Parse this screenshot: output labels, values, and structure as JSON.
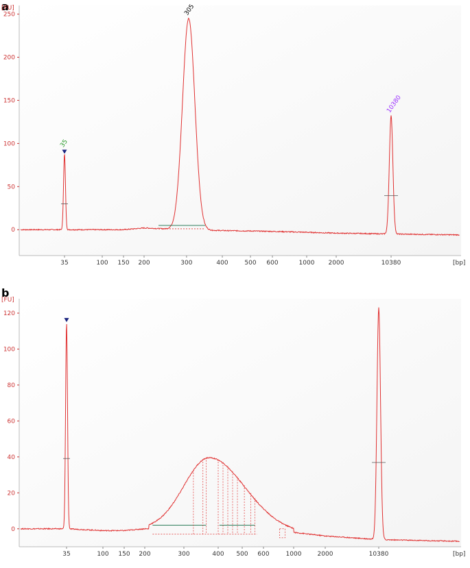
{
  "chart_data": [
    {
      "panel_label": "a",
      "type": "line",
      "y_unit": "[FU]",
      "x_unit": "[bp]",
      "ylim": [
        -30,
        260
      ],
      "yticks": [
        0,
        50,
        100,
        150,
        200,
        250
      ],
      "x_tick_labels": [
        "35",
        "100",
        "150",
        "200",
        "300",
        "400",
        "500",
        "600",
        "1000",
        "2000",
        "10380"
      ],
      "x_scale": "migration-time (non-linear)",
      "grid": false,
      "line_color": "#e03030",
      "series": [
        {
          "baseline_points": [
            [
              15,
              0
            ],
            [
              35,
              0
            ],
            [
              100,
              0
            ],
            [
              150,
              0
            ],
            [
              200,
              2
            ],
            [
              300,
              0
            ],
            [
              400,
              -1
            ],
            [
              600,
              -2
            ],
            [
              1000,
              -3
            ],
            [
              2000,
              -4
            ],
            [
              10380,
              -5
            ],
            [
              20000,
              -6
            ]
          ],
          "peaks": [
            {
              "size_bp": 35,
              "height": 88,
              "label": "35",
              "label_color": "#2a9a2a",
              "marker": "ladder-triangle",
              "marker_color": "#1a237e"
            },
            {
              "size_bp": 305,
              "height": 245,
              "label": "305",
              "label_color": "#000000"
            },
            {
              "size_bp": 10380,
              "height": 132,
              "label": "10380",
              "label_color": "#9b30ff"
            }
          ]
        }
      ]
    },
    {
      "panel_label": "b",
      "type": "line",
      "y_unit": "[FU]",
      "x_unit": "[bp]",
      "ylim": [
        -10,
        128
      ],
      "yticks": [
        0,
        20,
        40,
        60,
        80,
        100,
        120
      ],
      "x_tick_labels": [
        "35",
        "100",
        "150",
        "200",
        "300",
        "400",
        "500",
        "600",
        "1000",
        "2000",
        "10380"
      ],
      "x_scale": "migration-time (non-linear)",
      "grid": false,
      "line_color": "#e03030",
      "series": [
        {
          "baseline_points": [
            [
              15,
              0
            ],
            [
              35,
              0
            ],
            [
              100,
              -1
            ],
            [
              150,
              -1
            ],
            [
              200,
              0
            ],
            [
              1000,
              -2
            ],
            [
              2000,
              -4
            ],
            [
              10380,
              -6
            ],
            [
              20000,
              -7
            ]
          ],
          "smear": {
            "start_bp": 210,
            "peak_bp": 380,
            "end_bp": 1000,
            "peak_height": 40
          },
          "peaks": [
            {
              "size_bp": 35,
              "height": 115,
              "marker": "ladder-triangle",
              "marker_color": "#1a237e"
            },
            {
              "size_bp": 10380,
              "height": 123
            }
          ]
        }
      ]
    }
  ]
}
